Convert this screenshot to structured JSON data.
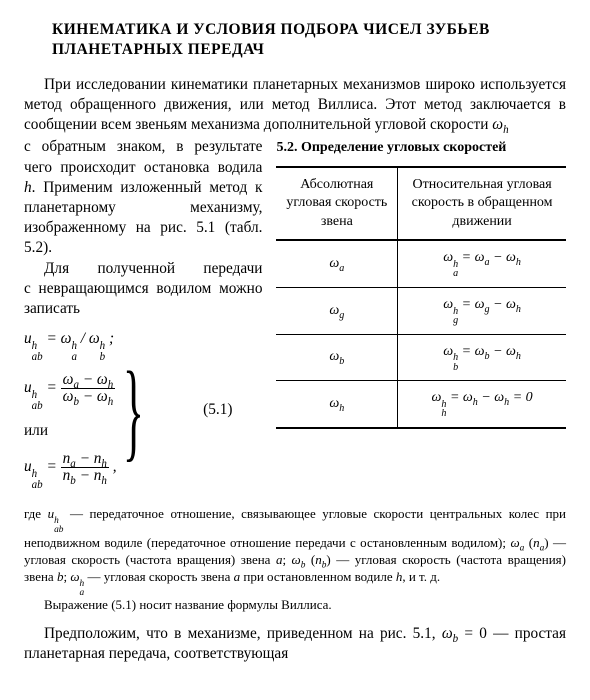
{
  "title": "КИНЕМАТИКА И УСЛОВИЯ ПОДБОРА ЧИСЕЛ ЗУБЬЕВ ПЛАНЕТАРНЫХ ПЕРЕДАЧ",
  "intro_html": "При исследовании кинематики планетарных механизмов широко используется метод обращенного движения, или метод Виллиса. Этот метод заключается в сообщении всем звеньям механизма дополнительной угловой скорости <span class='it'>ω<sub>h</sub></span>",
  "left_para1_html": "с обратным знаком, в результате чего происходит остановка водила <span class='it'>h</span>. Применим изложенный метод к планетарному механизму, изображенному на рис. 5.1 (табл. 5.2).",
  "left_para2_html": "Для полученной передачи с&nbsp;невращающимся водилом можно записать",
  "or_word": "или",
  "eq_number": "(5.1)",
  "eq1_html": "u<span class='supsub'><span>h</span><span>ab</span></span> = ω<span class='supsub'><span>h</span><span>a</span></span> / ω<span class='supsub'><span>h</span><span>b</span></span> ;",
  "eq2_num_html": "ω<sub>a</sub> − ω<sub>h</sub>",
  "eq2_den_html": "ω<sub>b</sub> − ω<sub>h</sub>",
  "eq2_lhs_html": "u<span class='supsub'><span>h</span><span>ab</span></span> = ",
  "eq3_lhs_html": "u<span class='supsub'><span>h</span><span>ab</span></span> = ",
  "eq3_num_html": "n<sub>a</sub> − n<sub>h</sub>",
  "eq3_den_html": "n<sub>b</sub> − n<sub>h</sub>",
  "table_caption": "5.2. Определение угловых скоростей",
  "table_head_col1": "Абсолютная угловая скорость звена",
  "table_head_col2": "Относительная угловая скорость в обращенном движении",
  "rows": [
    {
      "c1_html": "ω<sub>a</sub>",
      "c2_html": "ω<span class='supsub'><span>h</span><span>a</span></span> = ω<sub>a</sub> − ω<sub>h</sub>"
    },
    {
      "c1_html": "ω<sub>g</sub>",
      "c2_html": "ω<span class='supsub'><span>h</span><span>g</span></span> = ω<sub>g</sub> − ω<sub>h</sub>"
    },
    {
      "c1_html": "ω<sub>b</sub>",
      "c2_html": "ω<span class='supsub'><span>h</span><span>b</span></span> = ω<sub>b</sub> − ω<sub>h</sub>"
    },
    {
      "c1_html": "ω<sub>h</sub>",
      "c2_html": "ω<span class='supsub'><span>h</span><span>h</span></span> = ω<sub>h</sub> − ω<sub>h</sub> = 0"
    }
  ],
  "footnote_html": "где <span class='it'>u<span class='supsub'><span>h</span><span>ab</span></span></span> — передаточное отношение, связывающее угловые скорости центральных колес при неподвижном водиле (передаточное отношение передачи с остановленным водилом); <span class='it'>ω<sub>a</sub></span> (<span class='it'>n<sub>a</sub></span>) — угловая скорость (частота вращения) звена <span class='it'>a</span>; <span class='it'>ω<sub>b</sub></span> (<span class='it'>n<sub>b</sub></span>) — угловая скорость (частота вращения) звена <span class='it'>b</span>; <span class='it'>ω<span class='supsub'><span>h</span><span>a</span></span></span> — угловая скорость звена <span class='it'>a</span> при остановленном водиле <span class='it'>h</span>, и т. д.",
  "footnote2_html": "Выражение (5.1) носит название формулы Виллиса.",
  "final_html": "Предположим, что в механизме, приведенном на рис. 5.1, <span class='it'>ω<sub>b</sub></span> = 0 — простая планетарная передача, соответствующая",
  "colors": {
    "text": "#000000",
    "bg": "#ffffff",
    "rule": "#000000"
  },
  "fonts": {
    "body_pt": 12,
    "title_pt": 12,
    "table_pt": 11,
    "footnote_pt": 10
  }
}
